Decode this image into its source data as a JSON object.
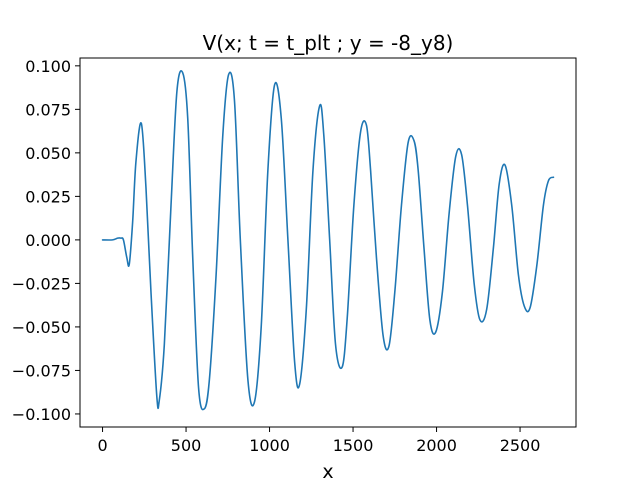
{
  "chart_data": {
    "type": "line",
    "title": "V(x; t = t_plt ; y = -8_y8)",
    "xlabel": "x",
    "ylabel": "",
    "xlim": [
      -135,
      2835
    ],
    "ylim": [
      -0.1075,
      0.1045
    ],
    "xticks": [
      0,
      500,
      1000,
      1500,
      2000,
      2500
    ],
    "xtick_labels": [
      "0",
      "500",
      "1000",
      "1500",
      "2000",
      "2500"
    ],
    "yticks": [
      -0.1,
      -0.075,
      -0.05,
      -0.025,
      0.0,
      0.025,
      0.05,
      0.075,
      0.1
    ],
    "ytick_labels": [
      "−0.100",
      "−0.075",
      "−0.050",
      "−0.025",
      "0.000",
      "0.025",
      "0.050",
      "0.075",
      "0.100"
    ],
    "grid": false,
    "legend": "none",
    "series": [
      {
        "color": "#1f77b4",
        "x": [
          0,
          60,
          90,
          110,
          125,
          145,
          160,
          180,
          200,
          232,
          260,
          290,
          325,
          340,
          370,
          410,
          445,
          480,
          510,
          540,
          575,
          610,
          640,
          680,
          720,
          755,
          790,
          825,
          870,
          910,
          950,
          990,
          1030,
          1070,
          1110,
          1150,
          1180,
          1220,
          1260,
          1300,
          1325,
          1360,
          1395,
          1435,
          1465,
          1505,
          1545,
          1580,
          1605,
          1640,
          1680,
          1715,
          1750,
          1790,
          1830,
          1865,
          1890,
          1925,
          1960,
          1995,
          2035,
          2075,
          2115,
          2150,
          2185,
          2225,
          2260,
          2300,
          2340,
          2375,
          2410,
          2450,
          2490,
          2525,
          2560,
          2600,
          2640,
          2670,
          2700
        ],
        "y": [
          0.0,
          0.0,
          0.001,
          0.001,
          0.0,
          -0.01,
          -0.014,
          0.01,
          0.045,
          0.067,
          0.03,
          -0.03,
          -0.09,
          -0.092,
          -0.06,
          0.02,
          0.085,
          0.096,
          0.07,
          -0.01,
          -0.085,
          -0.097,
          -0.08,
          -0.02,
          0.06,
          0.095,
          0.08,
          0.0,
          -0.08,
          -0.093,
          -0.05,
          0.04,
          0.089,
          0.07,
          0.0,
          -0.07,
          -0.083,
          -0.04,
          0.04,
          0.077,
          0.06,
          0.0,
          -0.06,
          -0.073,
          -0.045,
          0.02,
          0.062,
          0.066,
          0.04,
          -0.01,
          -0.055,
          -0.061,
          -0.03,
          0.02,
          0.056,
          0.057,
          0.04,
          -0.005,
          -0.046,
          -0.053,
          -0.03,
          0.015,
          0.048,
          0.049,
          0.02,
          -0.025,
          -0.046,
          -0.04,
          -0.005,
          0.032,
          0.043,
          0.02,
          -0.02,
          -0.038,
          -0.039,
          -0.015,
          0.02,
          0.034,
          0.036
        ]
      }
    ]
  }
}
